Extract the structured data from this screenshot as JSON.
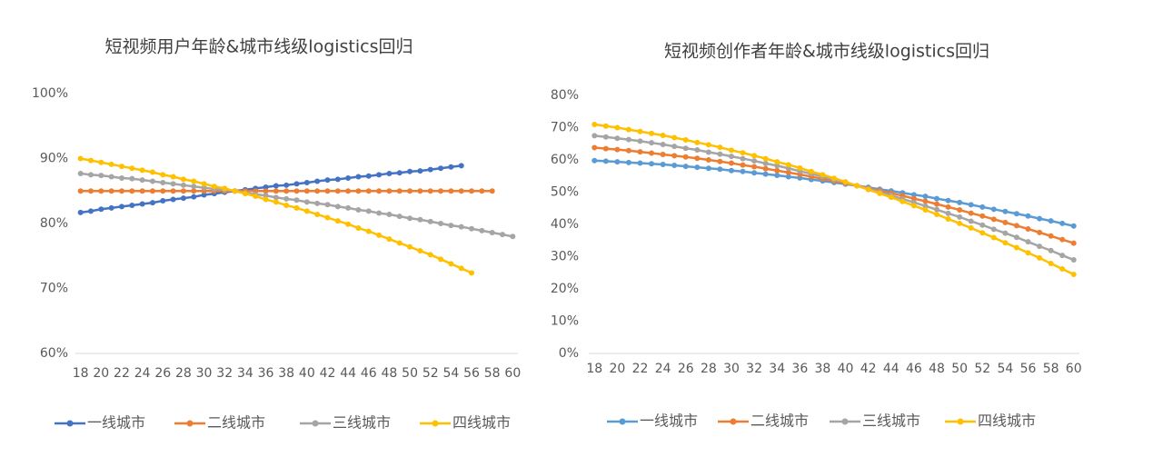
{
  "chart_data": [
    {
      "type": "line",
      "title": "短视频用户年龄&城市线级logistics回归",
      "x": [
        18,
        19,
        20,
        21,
        22,
        23,
        24,
        25,
        26,
        27,
        28,
        29,
        30,
        31,
        32,
        33,
        34,
        35,
        36,
        37,
        38,
        39,
        40,
        41,
        42,
        43,
        44,
        45,
        46,
        47,
        48,
        49,
        50,
        51,
        52,
        53,
        54,
        55,
        56,
        57,
        58,
        59,
        60
      ],
      "xlim": [
        17.5,
        60.5
      ],
      "xticks": [
        18,
        20,
        22,
        24,
        26,
        28,
        30,
        32,
        34,
        36,
        38,
        40,
        42,
        44,
        46,
        48,
        50,
        52,
        54,
        56,
        58,
        60
      ],
      "ylim": [
        60,
        100
      ],
      "yticks": [
        {
          "value": 60,
          "label": "60%"
        },
        {
          "value": 70,
          "label": "70%"
        },
        {
          "value": 80,
          "label": "80%"
        },
        {
          "value": 90,
          "label": "90%"
        },
        {
          "value": 100,
          "label": "100%"
        }
      ],
      "grid": false,
      "legend": "bottom",
      "series": [
        {
          "name": "一线城市",
          "color": "#4472c4",
          "values": [
            81.7,
            81.9,
            82.2,
            82.4,
            82.6,
            82.8,
            83.0,
            83.2,
            83.5,
            83.7,
            83.9,
            84.1,
            84.4,
            84.6,
            84.8,
            85.0,
            85.2,
            85.4,
            85.6,
            85.8,
            85.9,
            86.1,
            86.3,
            86.5,
            86.7,
            86.8,
            87.0,
            87.2,
            87.3,
            87.5,
            87.7,
            87.8,
            88.0,
            88.1,
            88.3,
            88.5,
            88.7,
            88.9,
            null,
            null,
            null,
            null,
            null
          ]
        },
        {
          "name": "二线城市",
          "color": "#ed7d31",
          "values": [
            85,
            85,
            85,
            85,
            85,
            85,
            85,
            85,
            85,
            85,
            85,
            85,
            85,
            85,
            85,
            85,
            85,
            85,
            85,
            85,
            85,
            85,
            85,
            85,
            85,
            85,
            85,
            85,
            85,
            85,
            85,
            85,
            85,
            85,
            85,
            85,
            85,
            85,
            85,
            85,
            85,
            null,
            null
          ]
        },
        {
          "name": "三线城市",
          "color": "#a5a5a5",
          "values": [
            87.7,
            87.5,
            87.4,
            87.2,
            87.0,
            86.9,
            86.7,
            86.5,
            86.3,
            86.1,
            85.9,
            85.7,
            85.5,
            85.3,
            85.2,
            85.0,
            84.7,
            84.5,
            84.3,
            84.0,
            83.8,
            83.6,
            83.3,
            83.1,
            82.9,
            82.6,
            82.4,
            82.1,
            81.9,
            81.6,
            81.4,
            81.1,
            80.8,
            80.6,
            80.3,
            80.0,
            79.7,
            79.5,
            79.2,
            78.9,
            78.6,
            78.3,
            78.0
          ]
        },
        {
          "name": "四线城市",
          "color": "#ffc000",
          "values": [
            90.0,
            89.7,
            89.4,
            89.1,
            88.8,
            88.5,
            88.2,
            87.9,
            87.5,
            87.2,
            86.8,
            86.5,
            86.1,
            85.7,
            85.4,
            85.0,
            84.6,
            84.2,
            83.7,
            83.3,
            82.8,
            82.4,
            81.9,
            81.4,
            80.9,
            80.4,
            79.9,
            79.3,
            78.8,
            78.2,
            77.6,
            77.0,
            76.4,
            75.8,
            75.2,
            74.5,
            73.8,
            73.1,
            72.4,
            null,
            null,
            null,
            null
          ]
        }
      ]
    },
    {
      "type": "line",
      "title": "短视频创作者年龄&城市线级logistics回归",
      "x": [
        18,
        19,
        20,
        21,
        22,
        23,
        24,
        25,
        26,
        27,
        28,
        29,
        30,
        31,
        32,
        33,
        34,
        35,
        36,
        37,
        38,
        39,
        40,
        41,
        42,
        43,
        44,
        45,
        46,
        47,
        48,
        49,
        50,
        51,
        52,
        53,
        54,
        55,
        56,
        57,
        58,
        59,
        60
      ],
      "xlim": [
        17.5,
        60.5
      ],
      "xticks": [
        18,
        20,
        22,
        24,
        26,
        28,
        30,
        32,
        34,
        36,
        38,
        40,
        42,
        44,
        46,
        48,
        50,
        52,
        54,
        56,
        58,
        60
      ],
      "ylim": [
        0,
        80
      ],
      "yticks": [
        {
          "value": 0,
          "label": "0%"
        },
        {
          "value": 10,
          "label": "10%"
        },
        {
          "value": 20,
          "label": "20%"
        },
        {
          "value": 30,
          "label": "30%"
        },
        {
          "value": 40,
          "label": "40%"
        },
        {
          "value": 50,
          "label": "50%"
        },
        {
          "value": 60,
          "label": "60%"
        },
        {
          "value": 70,
          "label": "70%"
        },
        {
          "value": 80,
          "label": "80%"
        }
      ],
      "grid": false,
      "legend": "bottom",
      "series": [
        {
          "name": "一线城市",
          "color": "#5b9bd5",
          "values": [
            59.8,
            59.6,
            59.4,
            59.2,
            59.0,
            58.8,
            58.6,
            58.3,
            58.0,
            57.7,
            57.4,
            57.1,
            56.7,
            56.4,
            56.0,
            55.6,
            55.2,
            54.8,
            54.4,
            53.9,
            53.5,
            53.0,
            52.5,
            52.0,
            51.5,
            50.9,
            50.4,
            49.8,
            49.2,
            48.7,
            48.0,
            47.4,
            46.8,
            46.1,
            45.4,
            44.7,
            44.0,
            43.3,
            42.6,
            41.8,
            41.1,
            40.3,
            39.5
          ]
        },
        {
          "name": "二线城市",
          "color": "#ed7d31",
          "values": [
            63.8,
            63.5,
            63.2,
            62.9,
            62.5,
            62.1,
            61.7,
            61.3,
            60.9,
            60.5,
            60.0,
            59.5,
            59.0,
            58.4,
            57.9,
            57.3,
            56.7,
            56.1,
            55.5,
            54.8,
            54.1,
            53.5,
            52.7,
            52.0,
            51.2,
            50.5,
            49.7,
            48.9,
            48.0,
            47.2,
            46.3,
            45.4,
            44.5,
            43.5,
            42.6,
            41.6,
            40.6,
            39.6,
            38.6,
            37.5,
            36.4,
            35.3,
            34.2
          ]
        },
        {
          "name": "三线城市",
          "color": "#a5a5a5",
          "values": [
            67.5,
            67.1,
            66.7,
            66.3,
            65.8,
            65.3,
            64.8,
            64.2,
            63.6,
            63.1,
            62.4,
            61.8,
            61.1,
            60.4,
            59.7,
            58.9,
            58.2,
            57.4,
            56.5,
            55.7,
            54.8,
            53.9,
            53.0,
            52.0,
            51.0,
            50.0,
            49.0,
            47.9,
            46.8,
            45.7,
            44.6,
            43.4,
            42.3,
            41.0,
            39.8,
            38.5,
            37.3,
            36.0,
            34.6,
            33.2,
            31.9,
            30.4,
            29.0
          ]
        },
        {
          "name": "四线城市",
          "color": "#ffc000",
          "values": [
            71.0,
            70.5,
            70.0,
            69.4,
            68.8,
            68.2,
            67.6,
            66.9,
            66.2,
            65.4,
            64.7,
            63.9,
            63.0,
            62.2,
            61.3,
            60.4,
            59.4,
            58.5,
            57.5,
            56.4,
            55.4,
            54.3,
            53.2,
            52.0,
            50.8,
            49.6,
            48.4,
            47.1,
            45.8,
            44.5,
            43.1,
            41.7,
            40.3,
            38.9,
            37.4,
            35.9,
            34.3,
            32.8,
            31.2,
            29.6,
            27.9,
            26.2,
            24.5
          ]
        }
      ]
    }
  ]
}
